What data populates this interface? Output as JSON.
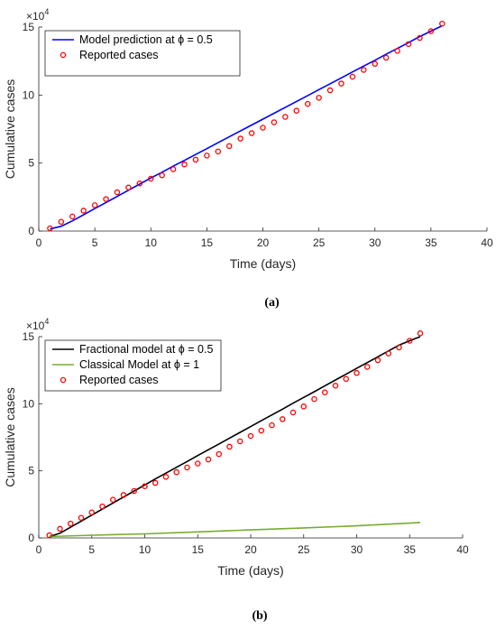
{
  "chart_data": [
    {
      "type": "line",
      "xlabel": "Time (days)",
      "ylabel": "Cumulative cases",
      "xlim": [
        0,
        40
      ],
      "ylim": [
        0,
        15
      ],
      "y_multiplier": "×10",
      "y_multiplier_exp": "4",
      "xticks": [
        0,
        5,
        10,
        15,
        20,
        25,
        30,
        35,
        40
      ],
      "yticks": [
        0,
        5,
        10,
        15
      ],
      "legend_position": "top-left",
      "caption": "(a)",
      "series": [
        {
          "name": "Model prediction at ϕ = 0.5",
          "style": "line",
          "color": "#0000ff",
          "x": [
            1,
            2,
            3,
            4,
            5,
            6,
            7,
            8,
            9,
            10,
            11,
            12,
            13,
            14,
            15,
            16,
            17,
            18,
            19,
            20,
            21,
            22,
            23,
            24,
            25,
            26,
            27,
            28,
            29,
            30,
            31,
            32,
            33,
            34,
            35,
            36
          ],
          "values": [
            0.15,
            0.35,
            0.75,
            1.2,
            1.65,
            2.1,
            2.55,
            3.0,
            3.45,
            3.9,
            4.33,
            4.77,
            5.2,
            5.63,
            6.06,
            6.5,
            6.93,
            7.36,
            7.8,
            8.23,
            8.66,
            9.1,
            9.53,
            9.96,
            10.4,
            10.83,
            11.26,
            11.7,
            12.13,
            12.56,
            13.0,
            13.43,
            13.86,
            14.3,
            14.7,
            15.1
          ]
        },
        {
          "name": "Reported cases",
          "style": "marker",
          "color": "#ff0000",
          "x": [
            1,
            2,
            3,
            4,
            5,
            6,
            7,
            8,
            9,
            10,
            11,
            12,
            13,
            14,
            15,
            16,
            17,
            18,
            19,
            20,
            21,
            22,
            23,
            24,
            25,
            26,
            27,
            28,
            29,
            30,
            31,
            32,
            33,
            34,
            35,
            36
          ],
          "values": [
            0.2,
            0.68,
            1.07,
            1.5,
            1.9,
            2.35,
            2.85,
            3.2,
            3.5,
            3.85,
            4.1,
            4.55,
            4.9,
            5.25,
            5.55,
            5.85,
            6.25,
            6.8,
            7.2,
            7.6,
            8.0,
            8.4,
            8.85,
            9.35,
            9.8,
            10.35,
            10.85,
            11.35,
            11.85,
            12.3,
            12.75,
            13.25,
            13.75,
            14.2,
            14.7,
            15.25
          ]
        }
      ]
    },
    {
      "type": "line",
      "xlabel": "Time (days)",
      "ylabel": "Cumulative cases",
      "xlim": [
        0,
        40
      ],
      "ylim": [
        0,
        15
      ],
      "y_multiplier": "×10",
      "y_multiplier_exp": "4",
      "xticks": [
        0,
        5,
        10,
        15,
        20,
        25,
        30,
        35,
        40
      ],
      "yticks": [
        0,
        5,
        10,
        15
      ],
      "legend_position": "top-left",
      "caption": "(b)",
      "series": [
        {
          "name": "Fractional model at ϕ = 0.5",
          "style": "line",
          "color": "#000000",
          "x": [
            1,
            2,
            3,
            4,
            5,
            6,
            7,
            8,
            9,
            10,
            11,
            12,
            13,
            14,
            15,
            16,
            17,
            18,
            19,
            20,
            21,
            22,
            23,
            24,
            25,
            26,
            27,
            28,
            29,
            30,
            31,
            32,
            33,
            34,
            35,
            36
          ],
          "values": [
            0.1,
            0.35,
            0.8,
            1.25,
            1.7,
            2.15,
            2.6,
            3.05,
            3.5,
            3.95,
            4.4,
            4.83,
            5.27,
            5.7,
            6.14,
            6.57,
            7.0,
            7.44,
            7.87,
            8.3,
            8.74,
            9.17,
            9.6,
            10.04,
            10.47,
            10.9,
            11.34,
            11.77,
            12.2,
            12.64,
            13.07,
            13.5,
            13.94,
            14.37,
            14.7,
            15.0
          ]
        },
        {
          "name": "Classical Model at ϕ = 1",
          "style": "line",
          "color": "#77ac30",
          "x": [
            1,
            5,
            10,
            15,
            20,
            25,
            30,
            36
          ],
          "values": [
            0.1,
            0.2,
            0.3,
            0.45,
            0.6,
            0.75,
            0.9,
            1.15
          ]
        },
        {
          "name": "Reported cases",
          "style": "marker",
          "color": "#ff0000",
          "x": [
            1,
            2,
            3,
            4,
            5,
            6,
            7,
            8,
            9,
            10,
            11,
            12,
            13,
            14,
            15,
            16,
            17,
            18,
            19,
            20,
            21,
            22,
            23,
            24,
            25,
            26,
            27,
            28,
            29,
            30,
            31,
            32,
            33,
            34,
            35,
            36
          ],
          "values": [
            0.2,
            0.68,
            1.07,
            1.5,
            1.9,
            2.35,
            2.85,
            3.2,
            3.5,
            3.85,
            4.1,
            4.55,
            4.9,
            5.25,
            5.55,
            5.85,
            6.25,
            6.8,
            7.2,
            7.6,
            8.0,
            8.4,
            8.85,
            9.35,
            9.8,
            10.35,
            10.85,
            11.35,
            11.85,
            12.3,
            12.75,
            13.25,
            13.75,
            14.2,
            14.7,
            15.25
          ]
        }
      ]
    }
  ]
}
